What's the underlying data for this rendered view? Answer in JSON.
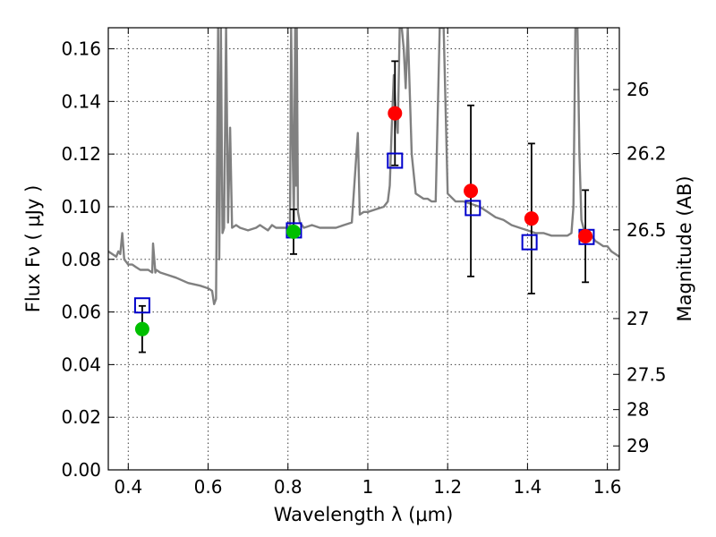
{
  "chart_data": {
    "type": "scatter",
    "title": "",
    "xlabel": "Wavelength  λ (μm)",
    "ylabel": "Flux  Fν  ( μJy )",
    "y2label": "Magnitude (AB)",
    "xlim": [
      0.35,
      1.63
    ],
    "ylim": [
      0.0,
      0.168
    ],
    "grid": true,
    "x_ticks": [
      0.4,
      0.6,
      0.8,
      1.0,
      1.2,
      1.4,
      1.6
    ],
    "x_tick_labels": [
      "0.4",
      "0.6",
      "0.8",
      "1",
      "1.2",
      "1.4",
      "1.6"
    ],
    "y_ticks": [
      0.0,
      0.02,
      0.04,
      0.06,
      0.08,
      0.1,
      0.12,
      0.14,
      0.16
    ],
    "y_tick_labels": [
      "0.00",
      "0.02",
      "0.04",
      "0.06",
      "0.08",
      "0.10",
      "0.12",
      "0.14",
      "0.16"
    ],
    "y2_ticks": [
      {
        "label": "26",
        "flux": 0.1445
      },
      {
        "label": "26.2",
        "flux": 0.1202
      },
      {
        "label": "26.5",
        "flux": 0.0912
      },
      {
        "label": "27",
        "flux": 0.0575
      },
      {
        "label": "27.5",
        "flux": 0.0363
      },
      {
        "label": "28",
        "flux": 0.0229
      },
      {
        "label": "29",
        "flux": 0.0091
      }
    ],
    "series": [
      {
        "marker": "filled-circle",
        "color": "#00bf00",
        "x": [
          0.435,
          0.814
        ],
        "y": [
          0.0535,
          0.0905
        ],
        "yerr": [
          0.0088,
          0.0085
        ]
      },
      {
        "marker": "filled-circle",
        "color": "#ff0000",
        "x": [
          1.068,
          1.258,
          1.41,
          1.545
        ],
        "y": [
          0.1355,
          0.106,
          0.0955,
          0.0888
        ],
        "yerr": [
          0.0198,
          0.0325,
          0.0285,
          0.0175
        ]
      },
      {
        "marker": "open-square",
        "color": "#0000cc",
        "x": [
          0.435,
          0.815,
          1.068,
          1.263,
          1.405,
          1.548
        ],
        "y": [
          0.0625,
          0.091,
          0.1175,
          0.0995,
          0.0865,
          0.0885
        ]
      },
      {
        "marker": "line",
        "color": "#808080",
        "x": [
          0.35,
          0.36,
          0.37,
          0.375,
          0.38,
          0.385,
          0.39,
          0.395,
          0.4,
          0.41,
          0.42,
          0.43,
          0.44,
          0.45,
          0.46,
          0.462,
          0.468,
          0.47,
          0.48,
          0.5,
          0.52,
          0.55,
          0.58,
          0.6,
          0.61,
          0.615,
          0.62,
          0.625,
          0.628,
          0.632,
          0.636,
          0.64,
          0.645,
          0.65,
          0.655,
          0.66,
          0.67,
          0.68,
          0.7,
          0.72,
          0.73,
          0.74,
          0.75,
          0.76,
          0.77,
          0.78,
          0.8,
          0.805,
          0.808,
          0.812,
          0.815,
          0.818,
          0.82,
          0.822,
          0.825,
          0.83,
          0.84,
          0.86,
          0.88,
          0.9,
          0.92,
          0.94,
          0.96,
          0.975,
          0.98,
          0.99,
          1.0,
          1.02,
          1.04,
          1.05,
          1.055,
          1.06,
          1.065,
          1.07,
          1.075,
          1.08,
          1.085,
          1.09,
          1.095,
          1.1,
          1.11,
          1.12,
          1.13,
          1.14,
          1.15,
          1.16,
          1.17,
          1.18,
          1.19,
          1.2,
          1.22,
          1.24,
          1.26,
          1.28,
          1.3,
          1.32,
          1.34,
          1.36,
          1.38,
          1.4,
          1.42,
          1.44,
          1.46,
          1.48,
          1.5,
          1.51,
          1.515,
          1.52,
          1.525,
          1.53,
          1.535,
          1.54,
          1.55,
          1.56,
          1.57,
          1.58,
          1.59,
          1.6,
          1.61,
          1.63
        ],
        "y": [
          0.083,
          0.082,
          0.081,
          0.083,
          0.082,
          0.09,
          0.08,
          0.079,
          0.078,
          0.078,
          0.077,
          0.076,
          0.076,
          0.076,
          0.075,
          0.086,
          0.075,
          0.076,
          0.075,
          0.074,
          0.073,
          0.071,
          0.07,
          0.069,
          0.068,
          0.063,
          0.065,
          0.168,
          0.08,
          0.168,
          0.09,
          0.092,
          0.168,
          0.094,
          0.13,
          0.092,
          0.093,
          0.092,
          0.091,
          0.092,
          0.093,
          0.092,
          0.091,
          0.093,
          0.092,
          0.092,
          0.092,
          0.093,
          0.168,
          0.12,
          0.094,
          0.168,
          0.108,
          0.168,
          0.098,
          0.094,
          0.092,
          0.093,
          0.092,
          0.092,
          0.092,
          0.093,
          0.094,
          0.128,
          0.097,
          0.098,
          0.098,
          0.099,
          0.1,
          0.102,
          0.108,
          0.13,
          0.15,
          0.135,
          0.128,
          0.168,
          0.168,
          0.16,
          0.145,
          0.168,
          0.12,
          0.105,
          0.104,
          0.103,
          0.103,
          0.102,
          0.102,
          0.168,
          0.168,
          0.105,
          0.102,
          0.102,
          0.101,
          0.1,
          0.098,
          0.096,
          0.095,
          0.093,
          0.092,
          0.091,
          0.09,
          0.09,
          0.089,
          0.089,
          0.089,
          0.09,
          0.1,
          0.168,
          0.168,
          0.12,
          0.095,
          0.092,
          0.09,
          0.089,
          0.087,
          0.086,
          0.085,
          0.085,
          0.083,
          0.081
        ]
      }
    ]
  }
}
